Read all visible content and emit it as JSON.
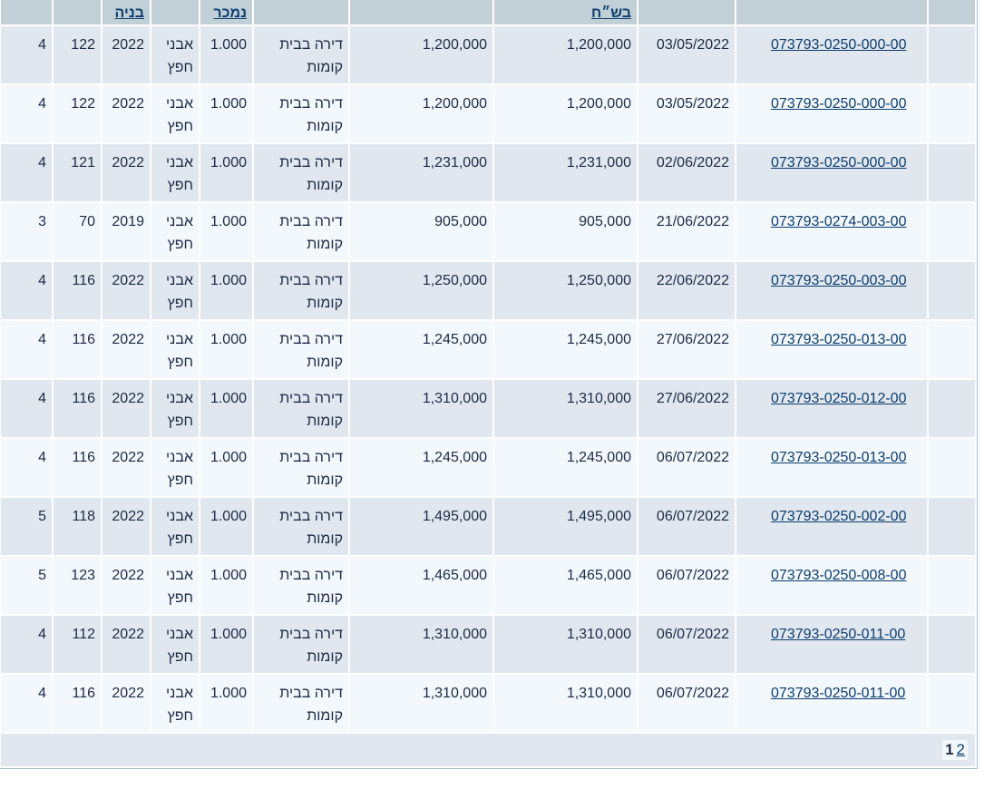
{
  "headers": [
    "",
    "",
    "",
    "בש״ח",
    "",
    "",
    "נמכר",
    "",
    "בניה",
    "",
    ""
  ],
  "rows": [
    {
      "gush": "073793-0250-000-00",
      "date": "03/05/2022",
      "price": "1,200,000",
      "declared": "1,200,000",
      "type": "דירה בבית קומות",
      "fraction": "1.000",
      "city": "אבני חפץ",
      "year": "2022",
      "area": "122",
      "rooms": "4"
    },
    {
      "gush": "073793-0250-000-00",
      "date": "03/05/2022",
      "price": "1,200,000",
      "declared": "1,200,000",
      "type": "דירה בבית קומות",
      "fraction": "1.000",
      "city": "אבני חפץ",
      "year": "2022",
      "area": "122",
      "rooms": "4"
    },
    {
      "gush": "073793-0250-000-00",
      "date": "02/06/2022",
      "price": "1,231,000",
      "declared": "1,231,000",
      "type": "דירה בבית קומות",
      "fraction": "1.000",
      "city": "אבני חפץ",
      "year": "2022",
      "area": "121",
      "rooms": "4"
    },
    {
      "gush": "073793-0274-003-00",
      "date": "21/06/2022",
      "price": "905,000",
      "declared": "905,000",
      "type": "דירה בבית קומות",
      "fraction": "1.000",
      "city": "אבני חפץ",
      "year": "2019",
      "area": "70",
      "rooms": "3"
    },
    {
      "gush": "073793-0250-003-00",
      "date": "22/06/2022",
      "price": "1,250,000",
      "declared": "1,250,000",
      "type": "דירה בבית קומות",
      "fraction": "1.000",
      "city": "אבני חפץ",
      "year": "2022",
      "area": "116",
      "rooms": "4"
    },
    {
      "gush": "073793-0250-013-00",
      "date": "27/06/2022",
      "price": "1,245,000",
      "declared": "1,245,000",
      "type": "דירה בבית קומות",
      "fraction": "1.000",
      "city": "אבני חפץ",
      "year": "2022",
      "area": "116",
      "rooms": "4"
    },
    {
      "gush": "073793-0250-012-00",
      "date": "27/06/2022",
      "price": "1,310,000",
      "declared": "1,310,000",
      "type": "דירה בבית קומות",
      "fraction": "1.000",
      "city": "אבני חפץ",
      "year": "2022",
      "area": "116",
      "rooms": "4"
    },
    {
      "gush": "073793-0250-013-00",
      "date": "06/07/2022",
      "price": "1,245,000",
      "declared": "1,245,000",
      "type": "דירה בבית קומות",
      "fraction": "1.000",
      "city": "אבני חפץ",
      "year": "2022",
      "area": "116",
      "rooms": "4"
    },
    {
      "gush": "073793-0250-002-00",
      "date": "06/07/2022",
      "price": "1,495,000",
      "declared": "1,495,000",
      "type": "דירה בבית קומות",
      "fraction": "1.000",
      "city": "אבני חפץ",
      "year": "2022",
      "area": "118",
      "rooms": "5"
    },
    {
      "gush": "073793-0250-008-00",
      "date": "06/07/2022",
      "price": "1,465,000",
      "declared": "1,465,000",
      "type": "דירה בבית קומות",
      "fraction": "1.000",
      "city": "אבני חפץ",
      "year": "2022",
      "area": "123",
      "rooms": "5"
    },
    {
      "gush": "073793-0250-011-00",
      "date": "06/07/2022",
      "price": "1,310,000",
      "declared": "1,310,000",
      "type": "דירה בבית קומות",
      "fraction": "1.000",
      "city": "אבני חפץ",
      "year": "2022",
      "area": "112",
      "rooms": "4"
    },
    {
      "gush": "073793-0250-011-00",
      "date": "06/07/2022",
      "price": "1,310,000",
      "declared": "1,310,000",
      "type": "דירה בבית קומות",
      "fraction": "1.000",
      "city": "אבני חפץ",
      "year": "2022",
      "area": "116",
      "rooms": "4"
    }
  ],
  "pager": {
    "current": "1",
    "next": "2"
  },
  "colors": {
    "header": "#c1cfd7",
    "row_odd": "#e1e7ef",
    "row_even": "#f3f8fd",
    "link": "#0b3d6e"
  }
}
